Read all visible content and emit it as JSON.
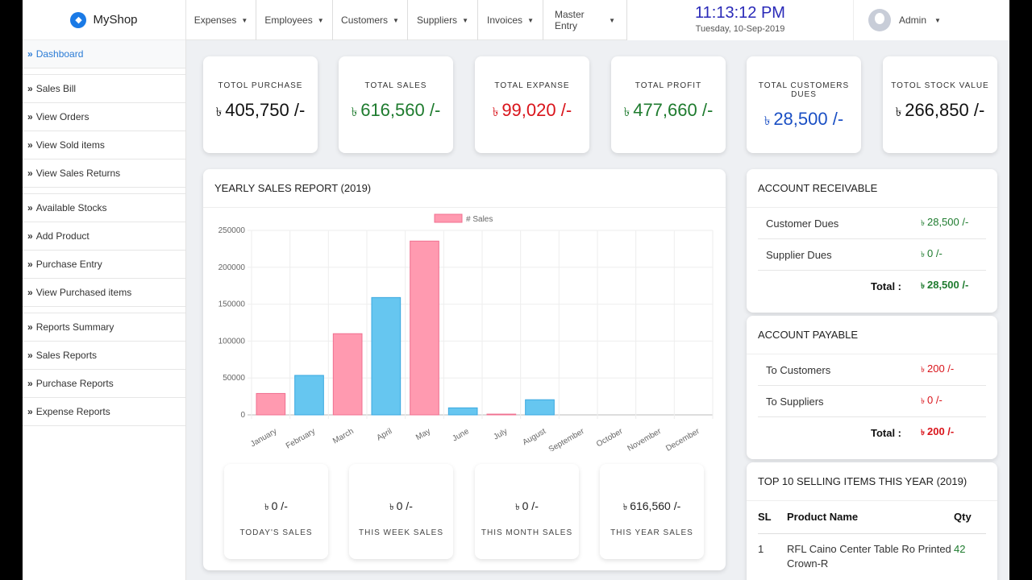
{
  "brand": {
    "name": "MyShop",
    "icon": "diamond-logo-icon"
  },
  "sidebar": {
    "items": [
      {
        "label": "Dashboard",
        "active": true
      },
      {
        "label": "Sales Bill"
      },
      {
        "label": "View Orders"
      },
      {
        "label": "View Sold items"
      },
      {
        "label": "View Sales Returns"
      },
      {
        "label": "Available Stocks"
      },
      {
        "label": "Add Product"
      },
      {
        "label": "Purchase Entry"
      },
      {
        "label": "View Purchased items"
      },
      {
        "label": "Reports Summary"
      },
      {
        "label": "Sales Reports"
      },
      {
        "label": "Purchase Reports"
      },
      {
        "label": "Expense Reports"
      }
    ]
  },
  "topbar": {
    "menus": [
      "Expenses",
      "Employees",
      "Customers",
      "Suppliers",
      "Invoices",
      "Master Entry"
    ],
    "time": "11:13:12 PM",
    "date": "Tuesday, 10-Sep-2019",
    "user": "Admin"
  },
  "currency": "৳",
  "stats": [
    {
      "label": "TOTOL PURCHASE",
      "value": "405,750 /-",
      "color": "#111111"
    },
    {
      "label": "TOTAL SALES",
      "value": "616,560 /-",
      "color": "#1e7b2e"
    },
    {
      "label": "TOTAL EXPANSE",
      "value": "99,020 /-",
      "color": "#d9141b"
    },
    {
      "label": "TOTAL PROFIT",
      "value": "477,660 /-",
      "color": "#1e7b2e"
    },
    {
      "label": "TOTAL CUSTOMERS DUES",
      "value": "28,500 /-",
      "color": "#1a4fc4"
    },
    {
      "label": "TOTOL STOCK VALUE",
      "value": "266,850 /-",
      "color": "#111111"
    }
  ],
  "report": {
    "title": "YEARLY SALES REPORT (2019)"
  },
  "chart_data": {
    "type": "bar",
    "legend": "# Sales",
    "legend_position": "top",
    "grid": true,
    "categories": [
      "January",
      "February",
      "March",
      "April",
      "May",
      "June",
      "July",
      "August",
      "September",
      "October",
      "November",
      "December"
    ],
    "values": [
      29000,
      53500,
      110000,
      159000,
      235500,
      9500,
      1000,
      20500,
      0,
      0,
      0,
      0
    ],
    "colors": [
      "#ff9ab0",
      "#66c6f0"
    ],
    "ylim": [
      0,
      250000
    ],
    "yticks": [
      0,
      50000,
      100000,
      150000,
      200000,
      250000
    ]
  },
  "period_sales": [
    {
      "value": "0 /-",
      "label": "TODAY'S SALES"
    },
    {
      "value": "0 /-",
      "label": "THIS WEEK SALES"
    },
    {
      "value": "0 /-",
      "label": "THIS MONTH SALES"
    },
    {
      "value": "616,560 /-",
      "label": "THIS YEAR SALES"
    }
  ],
  "receivable": {
    "title": "ACCOUNT RECEIVABLE",
    "rows": [
      {
        "k": "Customer Dues",
        "v": "28,500 /-"
      },
      {
        "k": "Supplier Dues",
        "v": "0 /-"
      }
    ],
    "total_label": "Total :",
    "total": "28,500 /-",
    "color": "#1e7b2e"
  },
  "payable": {
    "title": "ACCOUNT PAYABLE",
    "rows": [
      {
        "k": "To Customers",
        "v": "200 /-"
      },
      {
        "k": "To Suppliers",
        "v": "0 /-"
      }
    ],
    "total_label": "Total :",
    "total": "200 /-",
    "color": "#d9141b"
  },
  "top_items": {
    "title": "TOP 10 SELLING ITEMS THIS YEAR (2019)",
    "headers": [
      "SL",
      "Product Name",
      "Qty"
    ],
    "rows": [
      {
        "sl": "1",
        "name": "RFL Caino Center Table Ro Printed Crown-R",
        "qty": "42"
      }
    ]
  }
}
